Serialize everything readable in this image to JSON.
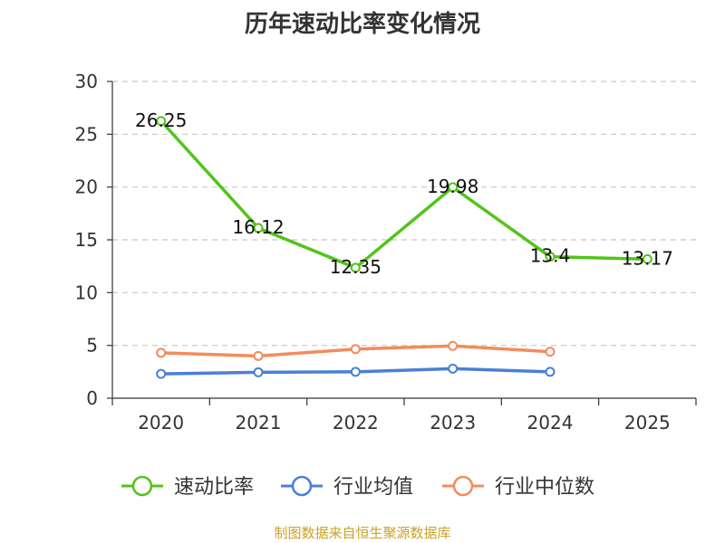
{
  "chart_data": {
    "type": "line",
    "title": "历年速动比率变化情况",
    "categories": [
      "2020",
      "2021",
      "2022",
      "2023",
      "2024",
      "2025"
    ],
    "ylim": [
      0,
      30
    ],
    "yticks": [
      "0",
      "5",
      "10",
      "15",
      "20",
      "25",
      "30"
    ],
    "grid": true,
    "legend_position": "bottom",
    "series": [
      {
        "name": "速动比率",
        "color": "#52c41a",
        "values": [
          26.25,
          16.12,
          12.35,
          19.98,
          13.4,
          13.17
        ],
        "labels": [
          "26.25",
          "16.12",
          "12.35",
          "19.98",
          "13.4",
          "13.17"
        ]
      },
      {
        "name": "行业均值",
        "color": "#4a7fd8",
        "values": [
          2.3,
          2.45,
          2.5,
          2.8,
          2.5,
          null
        ]
      },
      {
        "name": "行业中位数",
        "color": "#f28c5c",
        "values": [
          4.3,
          4.0,
          4.65,
          4.95,
          4.4,
          null
        ]
      }
    ]
  },
  "source_note": "制图数据来自恒生聚源数据库"
}
